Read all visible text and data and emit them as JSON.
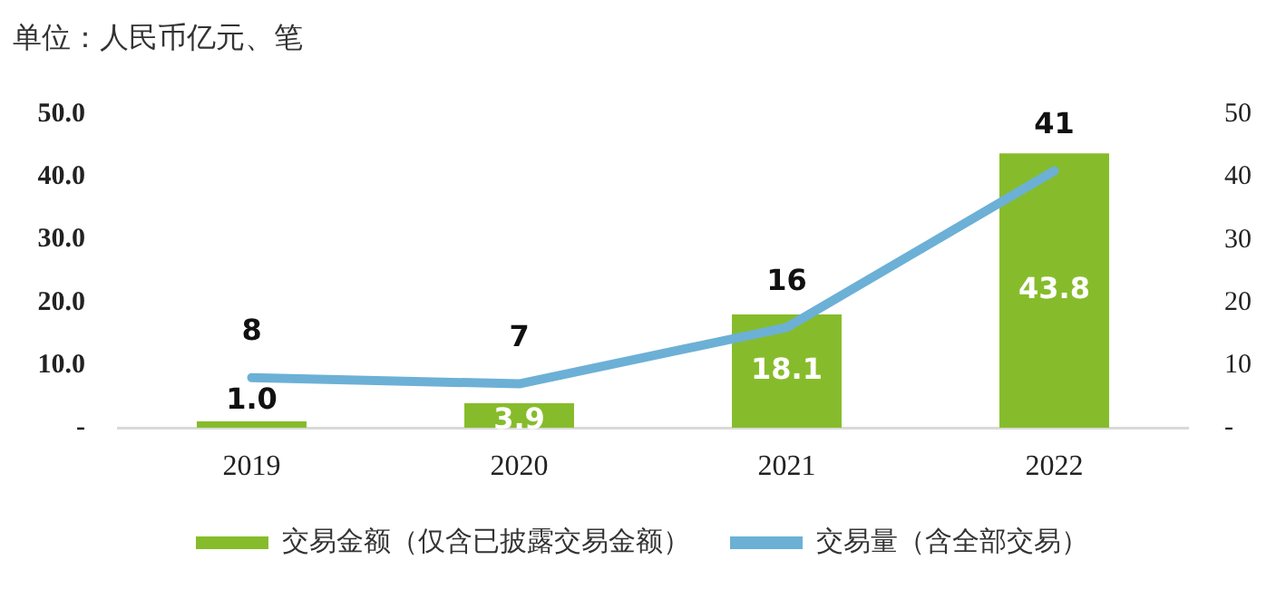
{
  "chart_data": {
    "type": "bar",
    "title": "单位：人民币亿元、笔",
    "categories": [
      "2019",
      "2020",
      "2021",
      "2022"
    ],
    "series": [
      {
        "name": "交易金额（仅含已披露交易金额）",
        "color": "#86bc2b",
        "values": [
          1.0,
          3.9,
          18.1,
          43.8
        ],
        "value_labels": [
          "1.0",
          "3.9",
          "18.1",
          "43.8"
        ]
      },
      {
        "name": "交易量（含全部交易）",
        "type": "line",
        "axis": "y2",
        "color": "#6cb0d6",
        "values": [
          8,
          7,
          16,
          41
        ],
        "value_labels": [
          "8",
          "7",
          "16",
          "41"
        ]
      }
    ],
    "ylim": [
      0,
      50
    ],
    "yticks": [
      {
        "value": 0,
        "label": "-"
      },
      {
        "value": 10,
        "label": "10.0"
      },
      {
        "value": 20,
        "label": "20.0"
      },
      {
        "value": 30,
        "label": "30.0"
      },
      {
        "value": 40,
        "label": "40.0"
      },
      {
        "value": 50,
        "label": "50.0"
      }
    ],
    "y2lim": [
      0,
      50
    ],
    "y2ticks": [
      {
        "value": 0,
        "label": "-"
      },
      10,
      20,
      30,
      40,
      50
    ],
    "legend": "bottom",
    "marker": "none",
    "line_style": "solid"
  }
}
